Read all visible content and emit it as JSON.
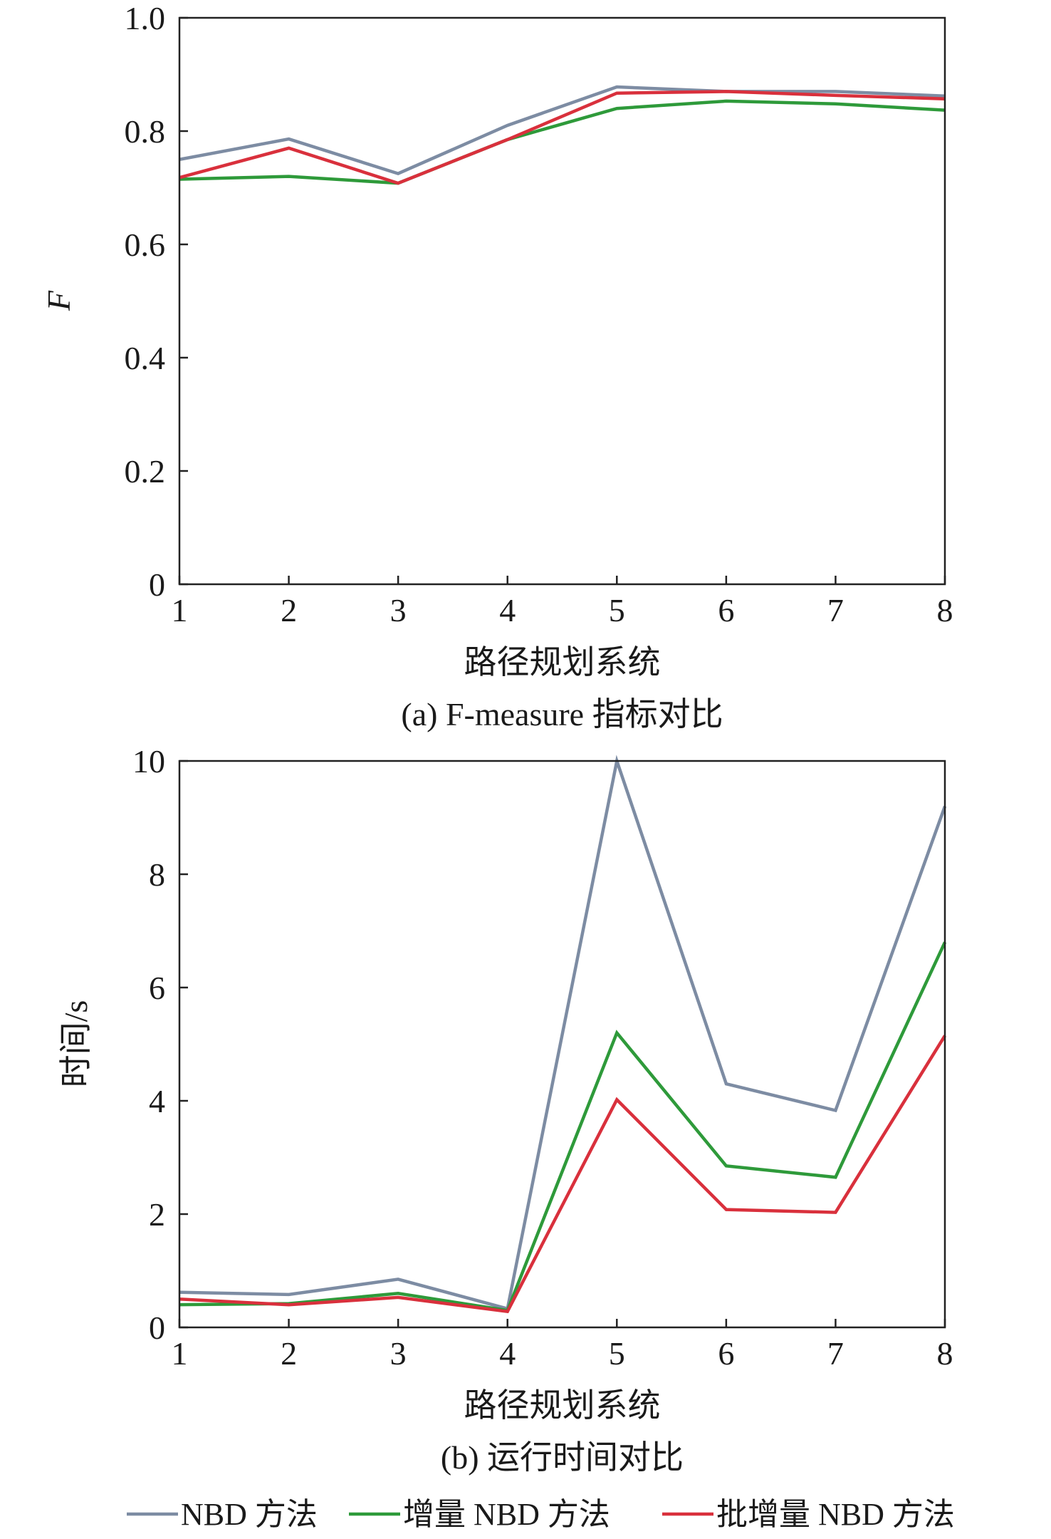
{
  "legend": [
    {
      "name": "NBD 方法",
      "color": "#7d8ca3"
    },
    {
      "name": "增量 NBD 方法",
      "color": "#2e9a3a"
    },
    {
      "name": "批增量 NBD 方法",
      "color": "#d9303c"
    }
  ],
  "chart_data": [
    {
      "type": "line",
      "caption": "(a) F-measure 指标对比",
      "xlabel": "路径规划系统",
      "ylabel": "F",
      "x": [
        1,
        2,
        3,
        4,
        5,
        6,
        7,
        8
      ],
      "xticks": [
        "1",
        "2",
        "3",
        "4",
        "5",
        "6",
        "7",
        "8"
      ],
      "ylim": [
        0,
        1.0
      ],
      "yticks": [
        "0",
        "0.2",
        "0.4",
        "0.6",
        "0.8",
        "1.0"
      ],
      "series": [
        {
          "name": "NBD 方法",
          "color": "#7d8ca3",
          "values": [
            0.75,
            0.786,
            0.725,
            0.81,
            0.878,
            0.87,
            0.87,
            0.862
          ]
        },
        {
          "name": "增量 NBD 方法",
          "color": "#2e9a3a",
          "values": [
            0.715,
            0.72,
            0.708,
            0.785,
            0.84,
            0.853,
            0.848,
            0.837
          ]
        },
        {
          "name": "批增量 NBD 方法",
          "color": "#d9303c",
          "values": [
            0.718,
            0.77,
            0.708,
            0.785,
            0.867,
            0.87,
            0.863,
            0.857
          ]
        }
      ],
      "grid": false
    },
    {
      "type": "line",
      "caption": "(b) 运行时间对比",
      "xlabel": "路径规划系统",
      "ylabel": "时间/s",
      "x": [
        1,
        2,
        3,
        4,
        5,
        6,
        7,
        8
      ],
      "xticks": [
        "1",
        "2",
        "3",
        "4",
        "5",
        "6",
        "7",
        "8"
      ],
      "ylim": [
        0,
        10
      ],
      "yticks": [
        "0",
        "2",
        "4",
        "6",
        "8",
        "10"
      ],
      "series": [
        {
          "name": "NBD 方法",
          "color": "#7d8ca3",
          "values": [
            0.62,
            0.58,
            0.85,
            0.33,
            10.0,
            4.3,
            3.83,
            9.2
          ]
        },
        {
          "name": "增量 NBD 方法",
          "color": "#2e9a3a",
          "values": [
            0.4,
            0.42,
            0.6,
            0.3,
            5.2,
            2.85,
            2.65,
            6.8
          ]
        },
        {
          "name": "批增量 NBD 方法",
          "color": "#d9303c",
          "values": [
            0.5,
            0.4,
            0.53,
            0.28,
            4.02,
            2.08,
            2.03,
            5.15
          ]
        }
      ],
      "grid": false
    }
  ]
}
